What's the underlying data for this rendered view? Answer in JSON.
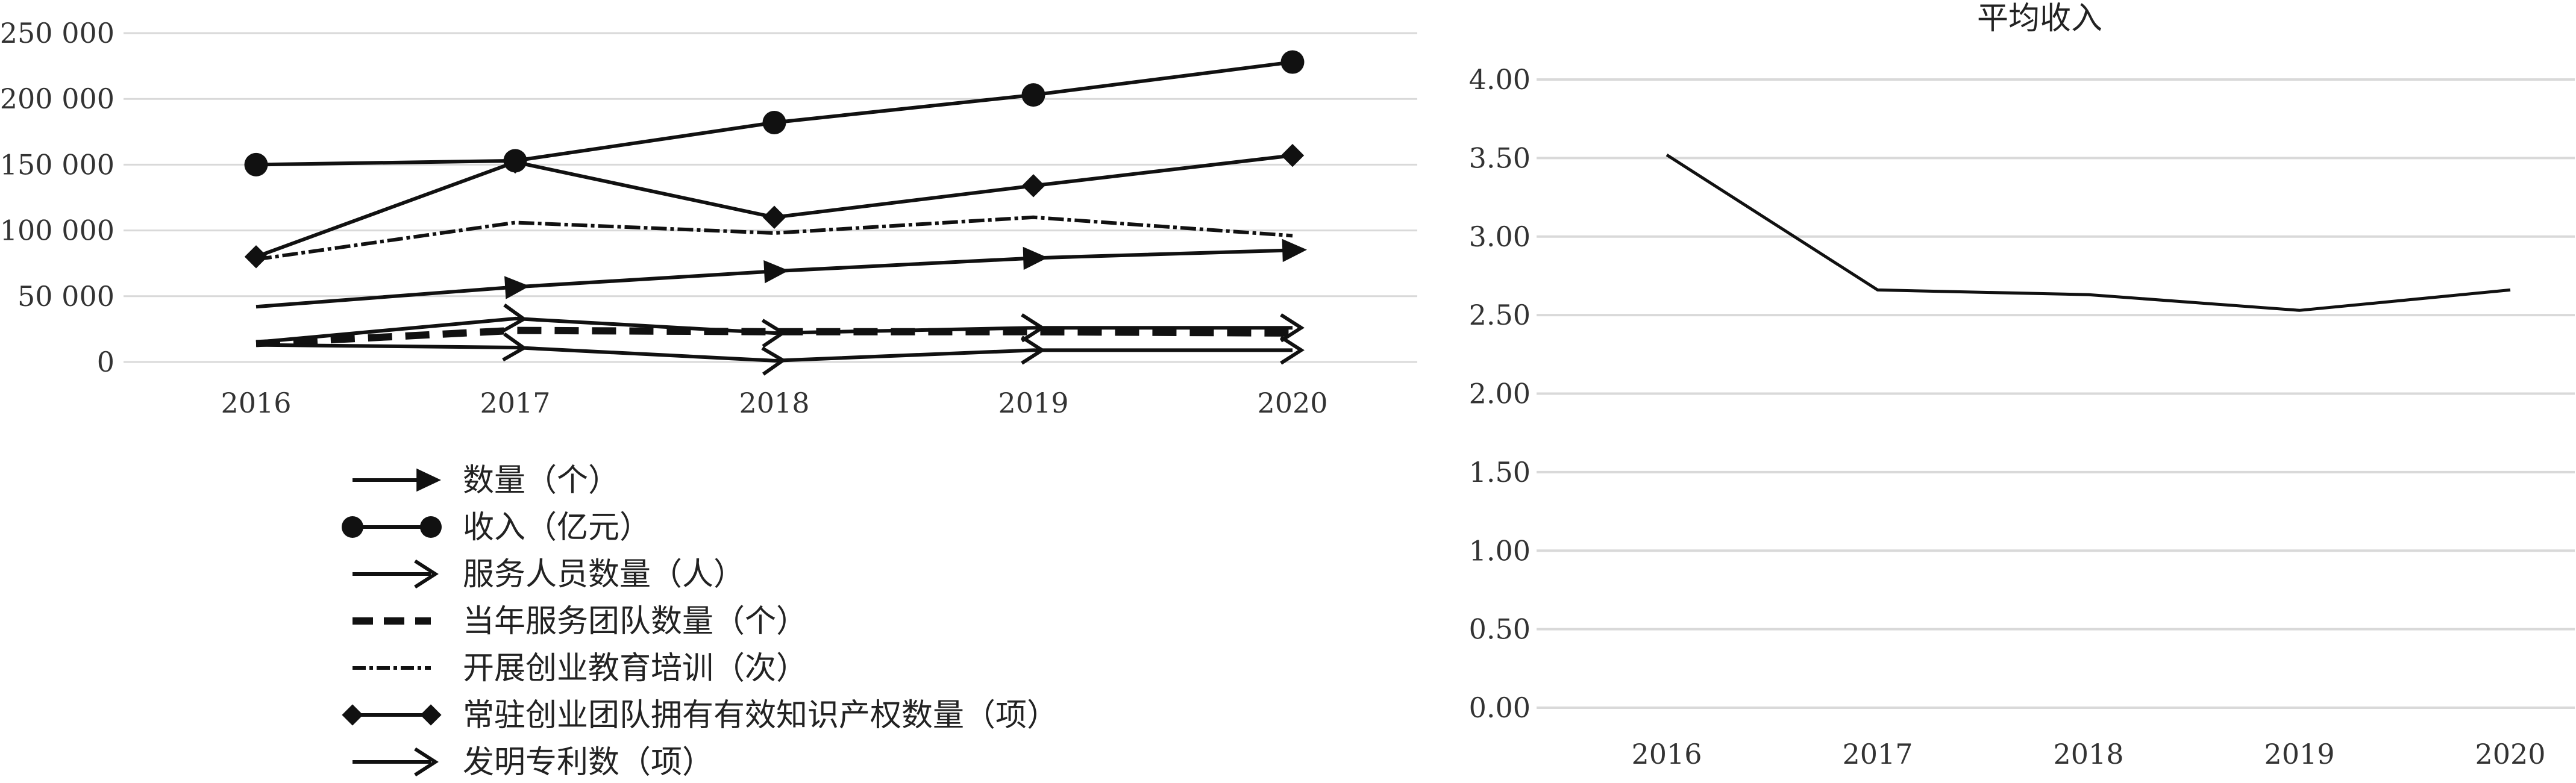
{
  "chart_data": [
    {
      "type": "line",
      "title": "",
      "xlabel": "",
      "ylabel": "",
      "categories": [
        "2016",
        "2017",
        "2018",
        "2019",
        "2020"
      ],
      "ylim": [
        0,
        250000
      ],
      "y_ticks": [
        "0",
        "50 000",
        "100 000",
        "150 000",
        "200 000",
        "250 000"
      ],
      "grid": true,
      "legend_position": "bottom",
      "series": [
        {
          "name": "数量（个）",
          "values": [
            42000,
            57000,
            69000,
            79000,
            85000
          ],
          "marker": "filled-arrow",
          "line": "solid"
        },
        {
          "name": "收入（亿元）",
          "values": [
            150000,
            153000,
            182000,
            203000,
            228000
          ],
          "marker": "circle",
          "line": "solid"
        },
        {
          "name": "服务人员数量（人）",
          "values": [
            15000,
            33000,
            22000,
            26000,
            26000
          ],
          "marker": "open-arrow",
          "line": "solid"
        },
        {
          "name": "当年服务团队数量（个）",
          "values": [
            14000,
            24000,
            23000,
            23000,
            22000
          ],
          "marker": "none",
          "line": "dashed"
        },
        {
          "name": "开展创业教育培训（次）",
          "values": [
            78000,
            106000,
            98000,
            110000,
            96000
          ],
          "marker": "none",
          "line": "dashdot"
        },
        {
          "name": "常驻创业团队拥有有效知识产权数量（项）",
          "values": [
            80000,
            152000,
            110000,
            134000,
            157000
          ],
          "marker": "diamond",
          "line": "solid"
        },
        {
          "name": "发明专利数（项）",
          "values": [
            13000,
            11000,
            1000,
            9000,
            9000
          ],
          "marker": "open-arrow",
          "line": "solid"
        }
      ]
    },
    {
      "type": "line",
      "title": "平均收入",
      "xlabel": "",
      "ylabel": "",
      "categories": [
        "2016",
        "2017",
        "2018",
        "2019",
        "2020"
      ],
      "ylim": [
        0,
        4.0
      ],
      "y_ticks": [
        "0.00",
        "0.50",
        "1.00",
        "1.50",
        "2.00",
        "2.50",
        "3.00",
        "3.50",
        "4.00"
      ],
      "grid": true,
      "series": [
        {
          "values": [
            3.52,
            2.66,
            2.63,
            2.53,
            2.66
          ]
        }
      ]
    }
  ]
}
